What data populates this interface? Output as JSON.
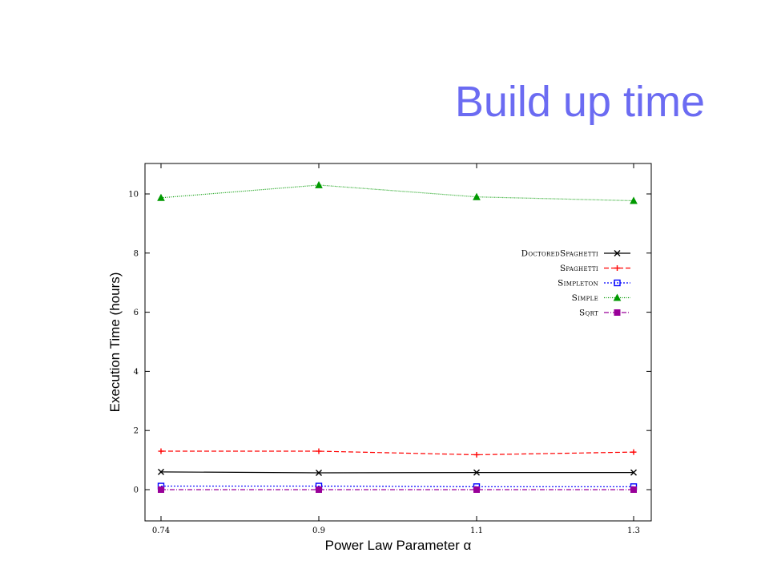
{
  "slide": {
    "title": "Build up time"
  },
  "chart_data": {
    "type": "line",
    "xlabel": "Power Law Parameter α",
    "ylabel": "Execution Time (hours)",
    "x": [
      0.74,
      0.9,
      1.1,
      1.3
    ],
    "x_tick_labels": [
      "0.74",
      "0.9",
      "1.1",
      "1.3"
    ],
    "y_ticks": [
      0,
      2,
      4,
      6,
      8,
      10
    ],
    "ylim": [
      -0.8,
      11
    ],
    "grid": false,
    "legend_position": "right",
    "series": [
      {
        "name": "DoctoredSpaghetti",
        "values": [
          0.6,
          0.57,
          0.58,
          0.58
        ],
        "color": "#000000",
        "marker": "x",
        "dash": ""
      },
      {
        "name": "Spaghetti",
        "values": [
          1.3,
          1.3,
          1.18,
          1.27
        ],
        "color": "#ff0000",
        "marker": "plus",
        "dash": "6,3"
      },
      {
        "name": "Simpleton",
        "values": [
          0.12,
          0.12,
          0.1,
          0.1
        ],
        "color": "#0000ff",
        "marker": "square",
        "dash": "2,2"
      },
      {
        "name": "Simple",
        "values": [
          9.87,
          10.3,
          9.9,
          9.77
        ],
        "color": "#009900",
        "marker": "triangle",
        "dash": "1,1.5"
      },
      {
        "name": "Sqrt",
        "values": [
          0.0,
          0.0,
          0.0,
          0.0
        ],
        "color": "#990099",
        "marker": "filled-square",
        "dash": "6,2,1,2"
      }
    ]
  }
}
